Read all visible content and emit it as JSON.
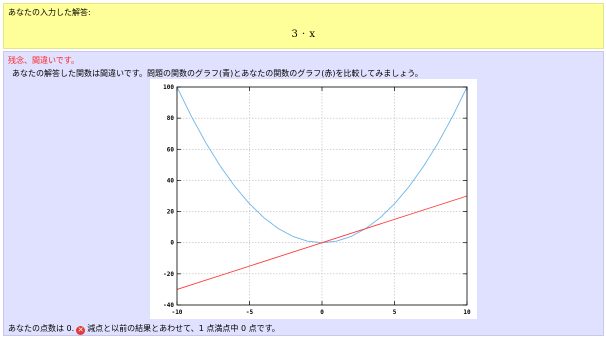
{
  "answer": {
    "label": "あなたの入力した解答:",
    "expression": "3 · x"
  },
  "feedback": {
    "title": "残念、間違いです。",
    "detail": "あなたの解答した関数は間違いです。問題の関数のグラフ(青)とあなたの関数のグラフ(赤)を比較してみましょう。",
    "score_prefix": "あなたの点数は 0.",
    "incorrect_icon": "x-circle-icon",
    "score_suffix": "減点と以前の結果とあわせて、1 点満点中 0 点です。"
  },
  "chart_data": {
    "type": "line",
    "xlim": [
      -10,
      10
    ],
    "ylim": [
      -40,
      100
    ],
    "x_ticks": [
      "-10",
      "-5",
      "0",
      "5",
      "10"
    ],
    "y_ticks": [
      "-40",
      "-20",
      "0",
      "20",
      "40",
      "60",
      "80",
      "100"
    ],
    "grid": true,
    "series": [
      {
        "color": "#6eb6ea",
        "x": [
          -10,
          -9,
          -8,
          -7,
          -6,
          -5,
          -4,
          -3,
          -2,
          -1,
          0,
          1,
          2,
          3,
          4,
          5,
          6,
          7,
          8,
          9,
          10
        ],
        "y": [
          100,
          81,
          64,
          49,
          36,
          25,
          16,
          9,
          4,
          1,
          0,
          1,
          4,
          9,
          16,
          25,
          36,
          49,
          64,
          81,
          100
        ]
      },
      {
        "color": "#ff3b3b",
        "x": [
          -10,
          10
        ],
        "y": [
          -30,
          30
        ]
      }
    ]
  }
}
